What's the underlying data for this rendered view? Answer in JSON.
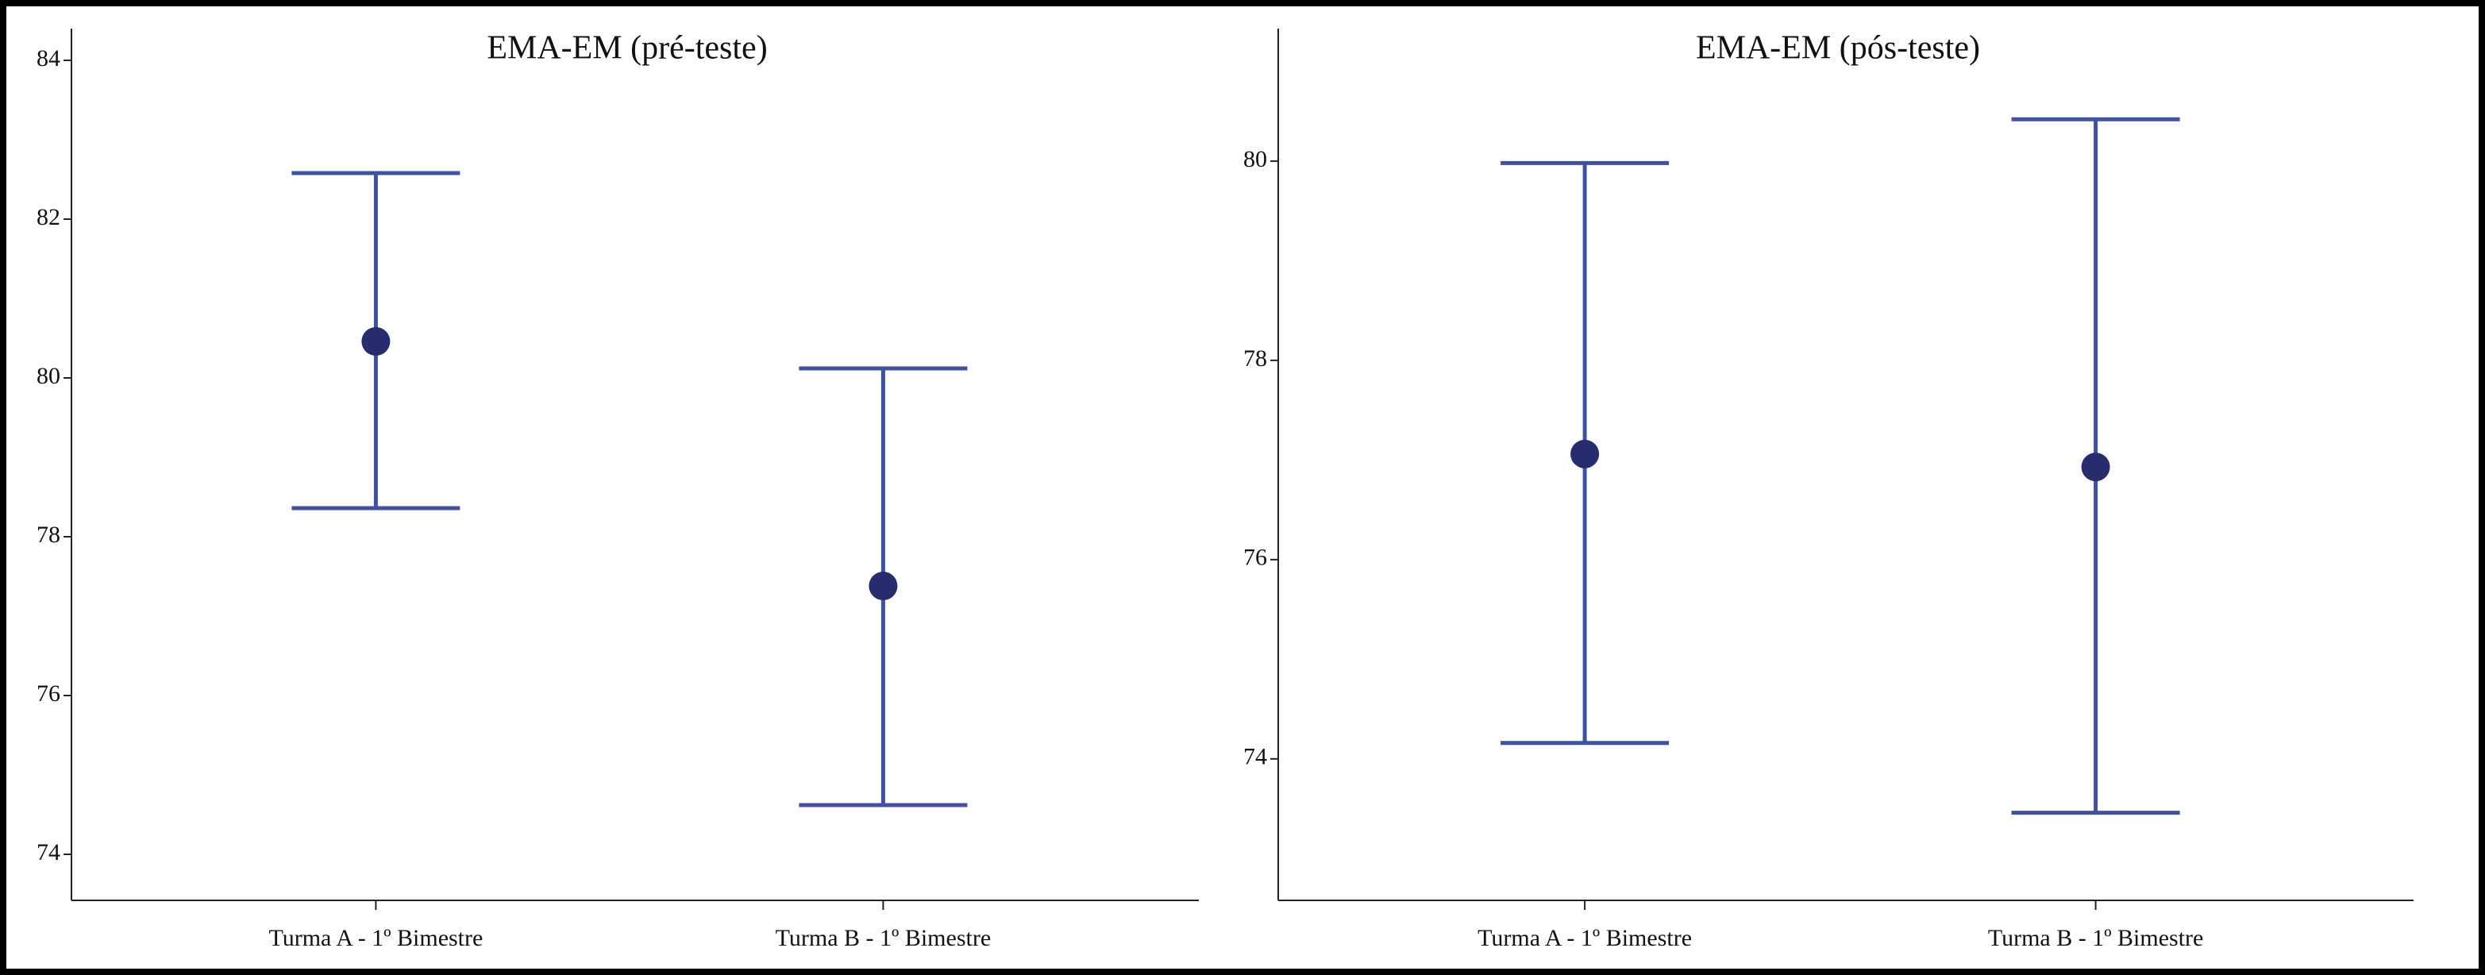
{
  "chart_data": [
    {
      "type": "errorbar",
      "title": "EMA-EM  (pré-teste)",
      "categories": [
        "Turma A - 1º Bimestre",
        "Turma B - 1º Bimestre"
      ],
      "values": [
        80.46,
        77.38
      ],
      "lower": [
        78.36,
        74.62
      ],
      "upper": [
        82.58,
        80.12
      ],
      "line_color": "#3f519f",
      "point_color": "#262c6e",
      "ylim": [
        73.42,
        84.4
      ],
      "yticks": [
        74,
        76,
        78,
        80,
        82,
        84
      ]
    },
    {
      "type": "errorbar",
      "title": "EMA-EM  (pós-teste)",
      "categories": [
        "Turma A - 1º Bimestre",
        "Turma B - 1º Bimestre"
      ],
      "values": [
        77.06,
        76.93
      ],
      "lower": [
        74.16,
        73.46
      ],
      "upper": [
        79.98,
        80.42
      ],
      "line_color": "#3f519f",
      "point_color": "#262c6e",
      "ylim": [
        72.58,
        81.33
      ],
      "yticks": [
        74,
        76,
        78,
        80
      ]
    }
  ]
}
